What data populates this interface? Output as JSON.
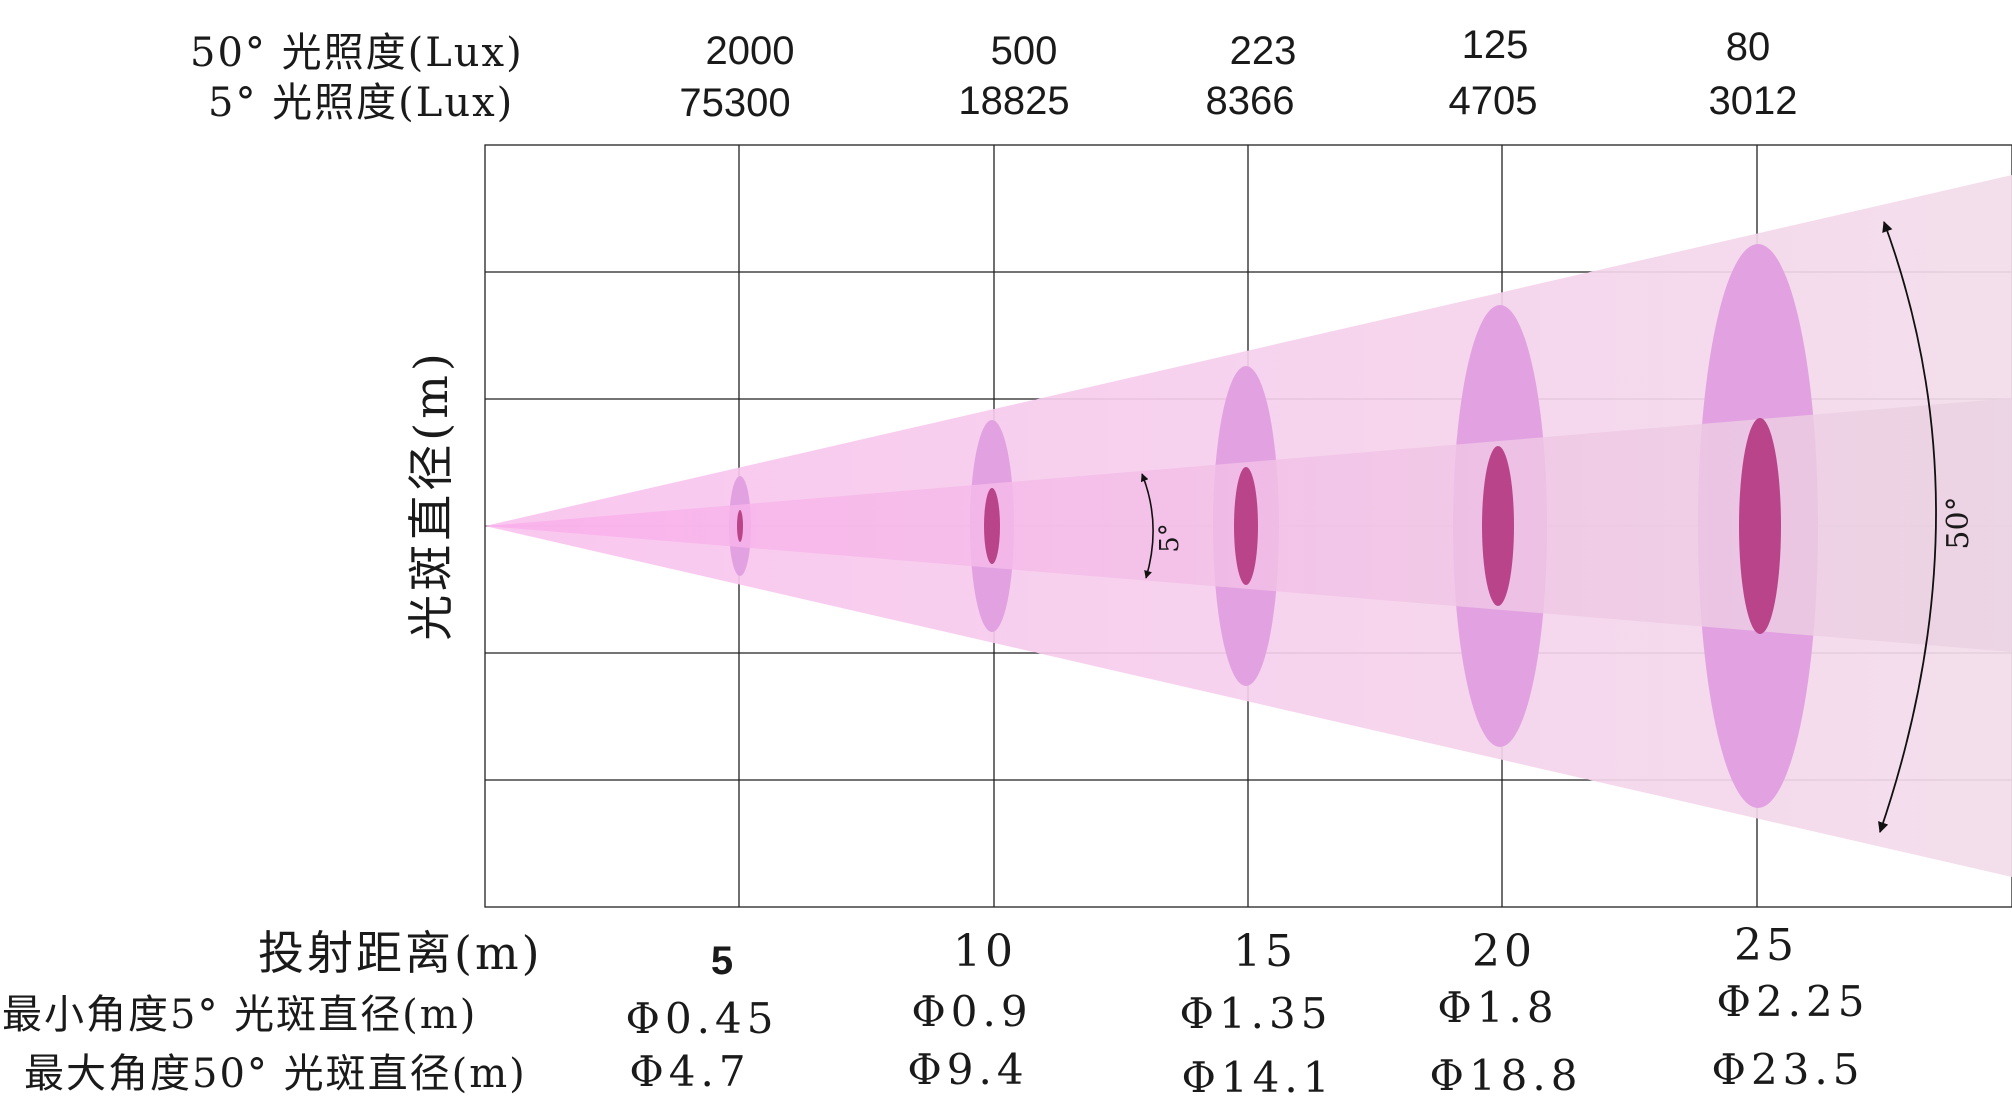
{
  "header": {
    "lux50_label": "50° 光照度(Lux)",
    "lux5_label": "5° 光照度(Lux)",
    "lux50_values": [
      "2000",
      "500",
      "223",
      "125",
      "80"
    ],
    "lux5_values": [
      "75300",
      "18825",
      "8366",
      "4705",
      "3012"
    ]
  },
  "y_axis_label": "光斑直径(m)",
  "footer": {
    "distance_label": "投射距离(m)",
    "distances": [
      "5",
      "10",
      "15",
      "20",
      "25"
    ],
    "min_label": "最小角度5° 光斑直径(m)",
    "min_diameters": [
      "Φ0.45",
      "Φ0.9",
      "Φ1.35",
      "Φ1.8",
      "Φ2.25"
    ],
    "max_label": "最大角度50° 光斑直径(m)",
    "max_diameters": [
      "Φ4.7",
      "Φ9.4",
      "Φ14.1",
      "Φ18.8",
      "Φ23.5"
    ]
  },
  "beam": {
    "narrow_angle_label": "5°",
    "wide_angle_label": "50°",
    "colors": {
      "wide_cone": "#f4d7ec",
      "narrow_cone": "#f0c4e4",
      "wide_spot": "#e2a2e2",
      "narrow_spot": "#b9448a",
      "grid": "#222222"
    }
  }
}
